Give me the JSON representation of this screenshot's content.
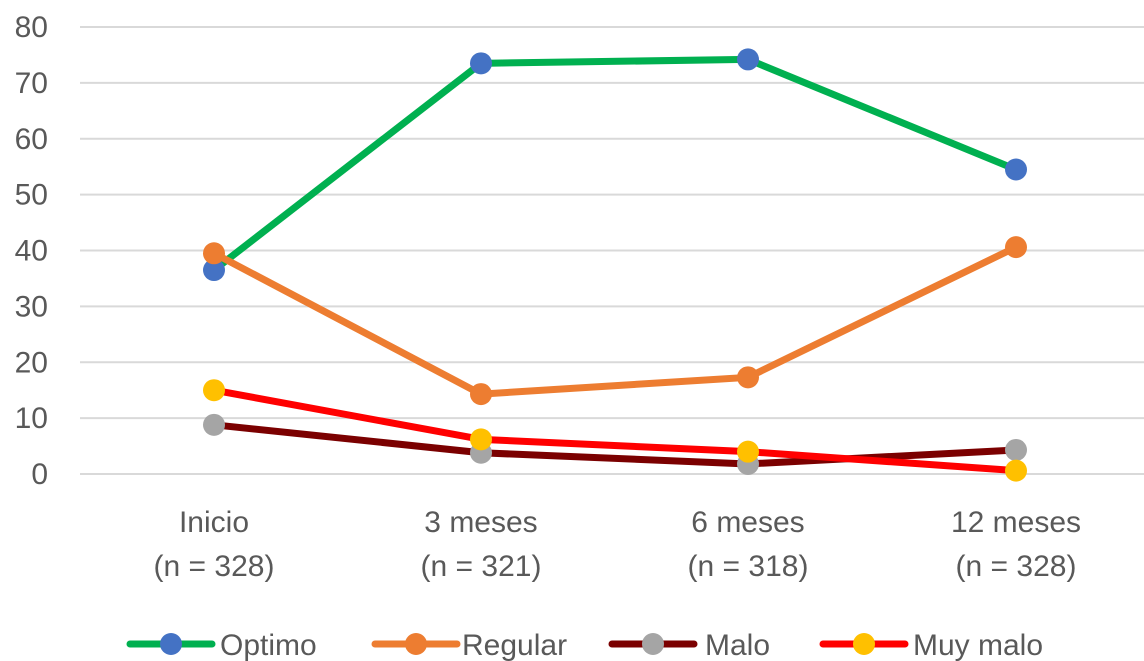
{
  "chart_data": {
    "type": "line",
    "categories": [
      [
        "Inicio",
        "(n = 328)"
      ],
      [
        "3 meses",
        "(n = 321)"
      ],
      [
        "6 meses",
        "(n = 318)"
      ],
      [
        "12 meses",
        "(n = 328)"
      ]
    ],
    "ylim": [
      0,
      80
    ],
    "yticks": [
      0,
      10,
      20,
      30,
      40,
      50,
      60,
      70,
      80
    ],
    "grid": true,
    "legend_position": "bottom",
    "series": [
      {
        "name": "Optimo",
        "line_color": "#00b050",
        "marker_color": "#4472c4",
        "values": [
          36.5,
          73.5,
          74.2,
          54.5
        ]
      },
      {
        "name": "Regular",
        "line_color": "#ed7d31",
        "marker_color": "#ed7d31",
        "values": [
          39.5,
          14.3,
          17.3,
          40.6
        ]
      },
      {
        "name": "Malo",
        "line_color": "#7b0000",
        "marker_color": "#a5a5a5",
        "values": [
          8.8,
          3.8,
          1.8,
          4.3
        ]
      },
      {
        "name": "Muy malo",
        "line_color": "#ff0000",
        "marker_color": "#ffc000",
        "values": [
          15.0,
          6.2,
          4.0,
          0.6
        ]
      }
    ]
  }
}
